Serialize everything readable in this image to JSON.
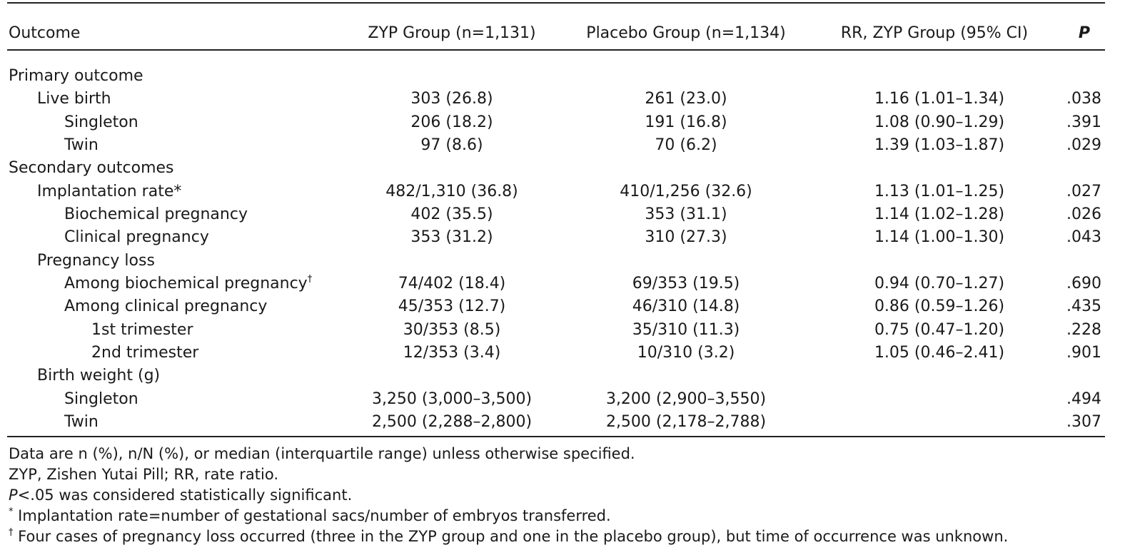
{
  "table": {
    "header": {
      "outcome": "Outcome",
      "zyp": "ZYP Group (n=1,131)",
      "placebo": "Placebo Group (n=1,134)",
      "rr": "RR, ZYP Group (95% CI)",
      "p": "P"
    },
    "rows": [
      {
        "label": "Primary outcome"
      },
      {
        "label": "Live birth",
        "zyp": "303 (26.8)",
        "placebo": "261 (23.0)",
        "rr": "1.16 (1.01–1.34)",
        "p": ".038"
      },
      {
        "label": "Singleton",
        "zyp": "206 (18.2)",
        "placebo": "191 (16.8)",
        "rr": "1.08 (0.90–1.29)",
        "p": ".391"
      },
      {
        "label": "Twin",
        "zyp": "97 (8.6)",
        "placebo": "70 (6.2)",
        "rr": "1.39 (1.03–1.87)",
        "p": ".029"
      },
      {
        "label": "Secondary outcomes"
      },
      {
        "label": "Implantation rate*",
        "zyp": "482/1,310 (36.8)",
        "placebo": "410/1,256 (32.6)",
        "rr": "1.13 (1.01–1.25)",
        "p": ".027"
      },
      {
        "label": "Biochemical pregnancy",
        "zyp": "402 (35.5)",
        "placebo": "353 (31.1)",
        "rr": "1.14 (1.02–1.28)",
        "p": ".026"
      },
      {
        "label": "Clinical pregnancy",
        "zyp": "353 (31.2)",
        "placebo": "310 (27.3)",
        "rr": "1.14 (1.00–1.30)",
        "p": ".043"
      },
      {
        "label": "Pregnancy loss"
      },
      {
        "label": "Among biochemical pregnancy",
        "mark": "†",
        "zyp": "74/402 (18.4)",
        "placebo": "69/353 (19.5)",
        "rr": "0.94 (0.70–1.27)",
        "p": ".690"
      },
      {
        "label": "Among clinical pregnancy",
        "zyp": "45/353 (12.7)",
        "placebo": "46/310 (14.8)",
        "rr": "0.86 (0.59–1.26)",
        "p": ".435"
      },
      {
        "label": "1st trimester",
        "zyp": "30/353 (8.5)",
        "placebo": "35/310 (11.3)",
        "rr": "0.75 (0.47–1.20)",
        "p": ".228"
      },
      {
        "label": "2nd trimester",
        "zyp": "12/353 (3.4)",
        "placebo": "10/310 (3.2)",
        "rr": "1.05 (0.46–2.41)",
        "p": ".901"
      },
      {
        "label": "Birth weight (g)"
      },
      {
        "label": "Singleton",
        "zyp": "3,250 (3,000–3,500)",
        "placebo": "3,200 (2,900–3,550)",
        "p": ".494"
      },
      {
        "label": "Twin",
        "zyp": "2,500 (2,288–2,800)",
        "placebo": "2,500 (2,178–2,788)",
        "p": ".307"
      }
    ],
    "footnotes": [
      {
        "text": "Data are n (%), n/N (%), or median (interquartile range) unless otherwise specified."
      },
      {
        "text": "ZYP, Zishen Yutai Pill; RR, rate ratio."
      },
      {
        "italic": "P",
        "text": "<.05 was considered statistically significant."
      },
      {
        "mark": "*",
        "text": " Implantation rate=number of gestational sacs/number of embryos transferred."
      },
      {
        "mark": "†",
        "text": " Four cases of pregnancy loss occurred (three in the ZYP group and one in the placebo group), but time of occurrence was unknown."
      }
    ]
  }
}
